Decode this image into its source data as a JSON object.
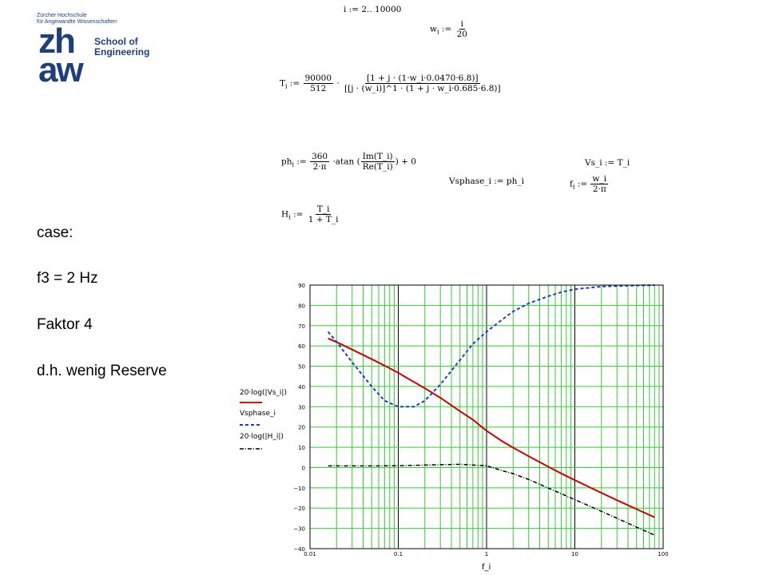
{
  "logo": {
    "line1": "Zürcher Hochschule",
    "line2": "für Angewandte Wissenschaften",
    "zh": "zh",
    "aw": "aw",
    "school_line1": "School of",
    "school_line2": "Engineering",
    "color": "#1f3f7a"
  },
  "case_text": {
    "line1": "case:",
    "line2": "f3 = 2 Hz",
    "line3": "Faktor 4",
    "line4": "d.h. wenig Reserve"
  },
  "equations": {
    "range": "i := 2.. 10000",
    "w_lhs": "w",
    "w_num": "i",
    "w_den": "20",
    "T_gain_num": "90000",
    "T_gain_den": "512",
    "T_numerator": "[1 + j · (1·w_i·0.0470·6.8)]",
    "T_denominator": "[[j · (w_i)]^1 · (1 + j · w_i·0.685·6.8)]",
    "ph_num": "360",
    "ph_den": "2·π",
    "ph_atan": "atan",
    "ph_im": "Im(T_i)",
    "ph_re": "Re(T_i)",
    "ph_tail": "+ 0",
    "vsphase": "Vsphase_i := ph_i",
    "vs": "Vs_i := T_i",
    "f_num": "w_i",
    "f_den": "2·π",
    "H_num": "T_i",
    "H_den": "1 + T_i"
  },
  "legend": {
    "entry1": "20·log(|Vs_i|)",
    "entry2": "Vsphase_i",
    "entry3": "20·log(|H_i|)"
  },
  "chart_data": {
    "type": "line",
    "xscale": "log",
    "xlim": [
      0.01,
      100
    ],
    "ylim": [
      -40,
      90
    ],
    "xticks": [
      "0.01",
      "0.1",
      "1",
      "10",
      "100"
    ],
    "yticks": [
      "90",
      "80",
      "70",
      "60",
      "50",
      "40",
      "30",
      "20",
      "10",
      "0",
      "−10",
      "−20",
      "−30",
      "−40"
    ],
    "xlabel": "f_i",
    "grid": true,
    "grid_color": "#33cc33",
    "series": [
      {
        "name": "20·log(|Vs_i|)",
        "color": "#cc0000",
        "style": "solid",
        "x": [
          0.016,
          0.02,
          0.03,
          0.05,
          0.07,
          0.1,
          0.15,
          0.2,
          0.3,
          0.5,
          0.7,
          1,
          1.5,
          2,
          3,
          5,
          7,
          10,
          15,
          20,
          30,
          50,
          79.6
        ],
        "y": [
          63.7,
          61.9,
          58.2,
          53.5,
          50.3,
          46.7,
          42.2,
          39.1,
          34.4,
          27.8,
          23.6,
          18.1,
          13.0,
          9.8,
          5.6,
          0.4,
          -2.9,
          -6.2,
          -9.9,
          -12.5,
          -16.1,
          -20.5,
          -24.5
        ]
      },
      {
        "name": "Vsphase_i",
        "color": "#1a3fc4",
        "style": "dashed",
        "x": [
          0.016,
          0.02,
          0.03,
          0.05,
          0.07,
          0.1,
          0.15,
          0.2,
          0.3,
          0.5,
          0.7,
          1,
          1.5,
          2,
          3,
          5,
          7,
          10,
          20,
          50,
          79.6
        ],
        "y": [
          67,
          62,
          52,
          40,
          33,
          30,
          30,
          33,
          41,
          53,
          61,
          67,
          73,
          77,
          81,
          84.5,
          86.5,
          88,
          89.3,
          89.8,
          90
        ]
      },
      {
        "name": "20·log(|H_i|)",
        "color": "#000000",
        "style": "dashdot",
        "x": [
          0.016,
          0.05,
          0.1,
          0.3,
          0.5,
          1,
          1.5,
          2,
          3,
          5,
          7,
          10,
          15,
          20,
          30,
          50,
          79.6
        ],
        "y": [
          0.8,
          0.8,
          0.9,
          1.4,
          1.6,
          0.9,
          -1.5,
          -3.0,
          -5.9,
          -10.1,
          -12.9,
          -15.8,
          -19.2,
          -21.6,
          -25.0,
          -29.4,
          -33.3
        ]
      }
    ]
  }
}
